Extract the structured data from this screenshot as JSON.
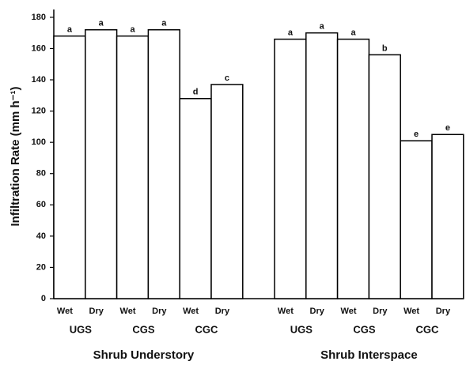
{
  "chart_data": {
    "type": "bar",
    "y_label": "Infiltration Rate (mm h⁻¹)",
    "categories": [
      "Wet",
      "Dry",
      "Wet",
      "Dry",
      "Wet",
      "Dry",
      "Wet",
      "Dry",
      "Wet",
      "Dry",
      "Wet",
      "Dry"
    ],
    "subgroups": [
      "UGS",
      "CGS",
      "CGC",
      "UGS",
      "CGS",
      "CGC"
    ],
    "groups": [
      "Shrub Understory",
      "Shrub Interspace"
    ],
    "values": [
      168,
      172,
      168,
      172,
      128,
      137,
      166,
      170,
      166,
      156,
      101,
      105
    ],
    "significance": [
      "a",
      "a",
      "a",
      "a",
      "d",
      "c",
      "a",
      "a",
      "a",
      "b",
      "e",
      "e"
    ],
    "color": "#ffffff",
    "ylim": [
      0,
      185
    ],
    "yticks": [
      0,
      20,
      40,
      60,
      80,
      100,
      120,
      140,
      160,
      180
    ],
    "grid": false
  }
}
